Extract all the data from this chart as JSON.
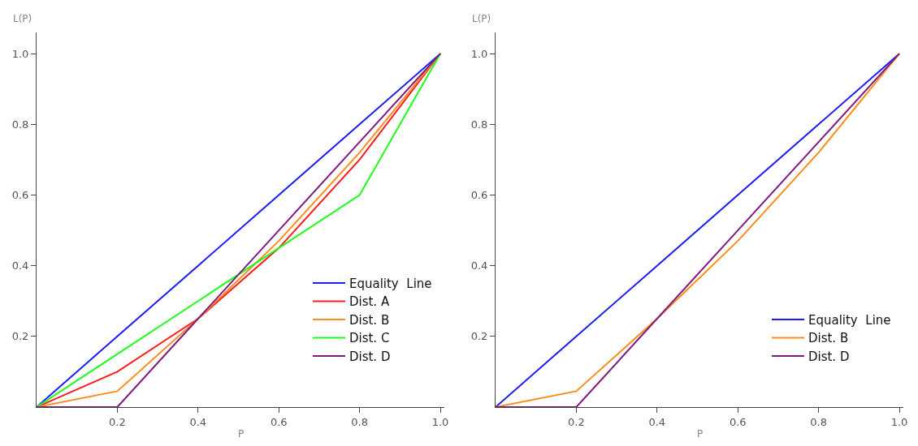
{
  "chart_data": [
    {
      "type": "line",
      "xlabel": "P",
      "ylabel": "L(P)",
      "x": [
        0,
        0.2,
        0.4,
        0.6,
        0.8,
        1.0
      ],
      "series": [
        {
          "name": "Equality  Line",
          "color": "#1a1aff",
          "values": [
            0,
            0.2,
            0.4,
            0.6,
            0.8,
            1.0
          ]
        },
        {
          "name": "Dist. A",
          "color": "#ff1a1a",
          "values": [
            0,
            0.1,
            0.25,
            0.45,
            0.7,
            1.0
          ]
        },
        {
          "name": "Dist. B",
          "color": "#ff8c1a",
          "values": [
            0,
            0.045,
            0.25,
            0.47,
            0.72,
            1.0
          ]
        },
        {
          "name": "Dist. C",
          "color": "#1aff1a",
          "values": [
            0,
            0.15,
            0.3,
            0.45,
            0.6,
            1.0
          ]
        },
        {
          "name": "Dist. D",
          "color": "#7f1a7f",
          "values": [
            0,
            0,
            0.25,
            0.5,
            0.75,
            1.0
          ]
        }
      ],
      "xlim": [
        0,
        1.01
      ],
      "ylim": [
        0,
        1.06
      ],
      "xticks": [
        0.2,
        0.4,
        0.6,
        0.8,
        {
          "value": 1,
          "label": "1.0"
        }
      ],
      "yticks": [
        0.2,
        0.4,
        0.6,
        0.8,
        {
          "value": 1,
          "label": "1.0"
        }
      ],
      "grid": false,
      "legend": "bottom right",
      "marker": "none",
      "line_style": "solid"
    },
    {
      "type": "line",
      "xlabel": "P",
      "ylabel": "L(P)",
      "x": [
        0,
        0.2,
        0.4,
        0.6,
        0.8,
        1.0
      ],
      "series": [
        {
          "name": "Equality  Line",
          "color": "#1a1aff",
          "values": [
            0,
            0.2,
            0.4,
            0.6,
            0.8,
            1.0
          ]
        },
        {
          "name": "Dist. B",
          "color": "#ff8c1a",
          "values": [
            0,
            0.045,
            0.25,
            0.47,
            0.72,
            1.0
          ]
        },
        {
          "name": "Dist. D",
          "color": "#7f1a7f",
          "values": [
            0,
            0,
            0.25,
            0.5,
            0.75,
            1.0
          ]
        }
      ],
      "xlim": [
        0,
        1.01
      ],
      "ylim": [
        0,
        1.06
      ],
      "xticks": [
        0.2,
        0.4,
        0.6,
        0.8,
        {
          "value": 1,
          "label": "1.0"
        }
      ],
      "yticks": [
        0.2,
        0.4,
        0.6,
        0.8,
        {
          "value": 1,
          "label": "1.0"
        }
      ],
      "grid": false,
      "legend": "bottom right",
      "marker": "none",
      "line_style": "solid"
    }
  ]
}
